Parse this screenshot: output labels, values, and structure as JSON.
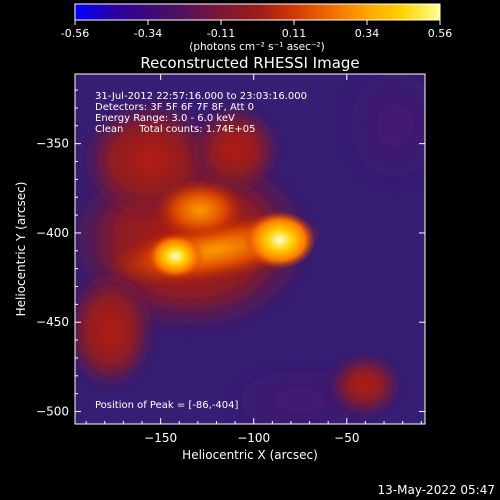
{
  "colorbar": {
    "ticks": [
      "-0.56",
      "-0.34",
      "-0.11",
      "0.11",
      "0.34",
      "0.56"
    ],
    "units": "(photons cm⁻² s⁻¹ asec⁻²)",
    "colormap": [
      "#0000ff",
      "#2a00a8",
      "#3a0a78",
      "#55105a",
      "#7a1835",
      "#9b1b1b",
      "#d23a05",
      "#f26b00",
      "#ffa400",
      "#ffd500",
      "#ffff9a"
    ]
  },
  "chart_data": {
    "type": "heatmap",
    "title": "Reconstructed RHESSI Image",
    "xlabel": "Heliocentric X (arcsec)",
    "ylabel": "Heliocentric Y (arcsec)",
    "xlim": [
      -196,
      -8
    ],
    "ylim": [
      -507,
      -311
    ],
    "x_ticks": [
      -150,
      -100,
      -50
    ],
    "y_ticks": [
      -350,
      -400,
      -450,
      -500
    ],
    "value_range": [
      -0.56,
      0.56
    ],
    "annotations": [
      "31-Jul-2012 22:57:16.000 to 23:03:16.000",
      "Detectors: 3F 5F 6F 7F 8F, Att 0",
      "Energy Range: 3.0 - 6.0 keV",
      "Clean     Total counts: 1.74E+05"
    ],
    "peak_label": "Position of Peak = [-86,-404]",
    "sources": [
      {
        "x": -86,
        "y": -404,
        "peak": 0.56
      },
      {
        "x": -142,
        "y": -413,
        "peak": 0.36
      }
    ]
  },
  "timestamp": "13-May-2022 05:47"
}
